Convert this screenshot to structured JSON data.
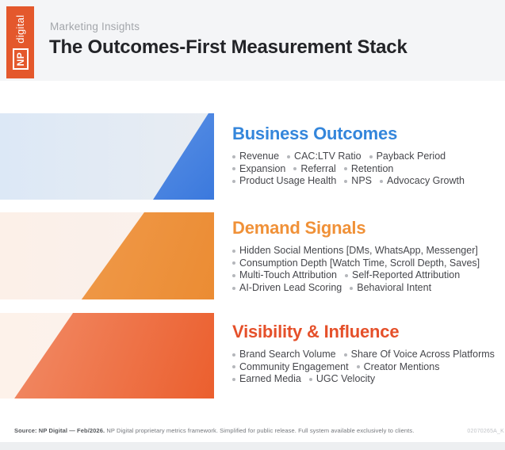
{
  "header": {
    "eyebrow": "Marketing Insights",
    "title": "The Outcomes-First Measurement Stack",
    "logo": {
      "np": "NP",
      "digital": "digital"
    }
  },
  "sections": [
    {
      "title": "Business Outcomes",
      "color": "#3486db",
      "lines": [
        [
          "Revenue",
          "CAC:LTV Ratio",
          "Payback Period"
        ],
        [
          "Expansion",
          "Referral",
          "Retention"
        ],
        [
          "Product Usage Health",
          "NPS",
          "Advocacy Growth"
        ]
      ]
    },
    {
      "title": "Demand Signals",
      "color": "#f09138",
      "lines": [
        [
          "Hidden Social Mentions [DMs, WhatsApp, Messenger]"
        ],
        [
          "Consumption Depth [Watch Time, Scroll Depth, Saves]"
        ],
        [
          "Multi-Touch Attribution",
          "Self-Reported Attribution"
        ],
        [
          "AI-Driven Lead Scoring",
          "Behavioral Intent"
        ]
      ]
    },
    {
      "title": "Visibility & Influence",
      "color": "#e5502a",
      "lines": [
        [
          "Brand Search Volume",
          "Share Of Voice Across Platforms"
        ],
        [
          "Community Engagement",
          "Creator Mentions"
        ],
        [
          "Earned Media",
          "UGC Velocity"
        ]
      ]
    }
  ],
  "footer": {
    "source_bold": "Source: NP Digital — Feb/2026.",
    "source_rest": " NP Digital proprietary metrics framework. Simplified for public release. Full system available exclusively to clients.",
    "code": "02070265A_K"
  },
  "colors": {
    "brand_orange": "#e4582c",
    "blue_accent": "#3b79dd",
    "orange_accent": "#eb8c33",
    "red_accent": "#eb5f2e",
    "header_bg": "#f4f5f7"
  }
}
